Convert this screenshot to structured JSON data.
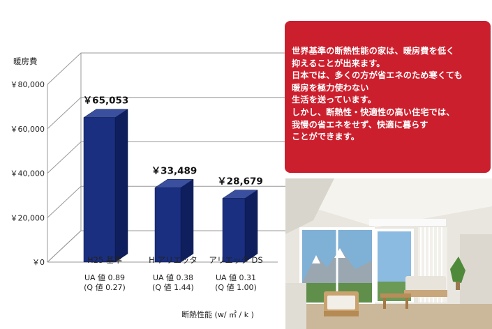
{
  "chart_data": {
    "type": "bar",
    "ylabel": "暖房費",
    "xlabel": "断熱性能 (w/ ㎡ / k )",
    "ylim": [
      0,
      80000
    ],
    "yticks": [
      {
        "value": 0,
        "label": "￥0"
      },
      {
        "value": 20000,
        "label": "￥20,000"
      },
      {
        "value": 40000,
        "label": "￥40,000"
      },
      {
        "value": 60000,
        "label": "￥60,000"
      },
      {
        "value": 80000,
        "label": "￥80,000"
      }
    ],
    "categories": [
      "H25 基準",
      "H アリエッタ",
      "アリエッタ DS"
    ],
    "values": [
      65053,
      33489,
      28679
    ],
    "value_labels": [
      "￥65,053",
      "￥33,489",
      "￥28,679"
    ],
    "sublabels": [
      [
        "UA 値 0.89",
        "(Q 値 0.27)"
      ],
      [
        "UA 値 0.38",
        "(Q 値 1.44)"
      ],
      [
        "UA 値 0.31",
        "(Q 値 1.00)"
      ]
    ],
    "colors": {
      "bar_front": "#1a2f80",
      "bar_side": "#0f1f5e",
      "bar_top": "#3a4f9e",
      "grid": "#999999"
    }
  },
  "callout": {
    "lines": [
      "世界基準の断熱性能の家は、暖房費を低く",
      "抑えることが出来ます。",
      "日本では、多くの方が省エネのため寒くても",
      "暖房を極力使わない",
      "生活を送っています。",
      "しかし、断熱性・快適性の高い住宅では、",
      "我慢の省エネをせず、快適に暮らす",
      "ことができます。"
    ],
    "background": "#cc1f2d"
  }
}
